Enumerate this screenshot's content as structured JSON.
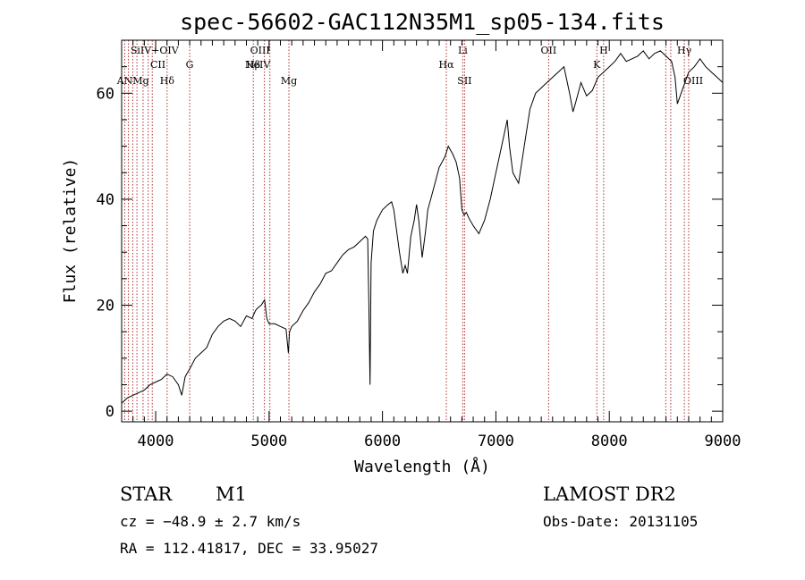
{
  "chart_data": {
    "type": "line",
    "title": "spec-56602-GAC112N35M1_sp05-134.fits",
    "xlabel": "Wavelength (Å)",
    "ylabel": "Flux (relative)",
    "xlim": [
      3700,
      9000
    ],
    "ylim": [
      -2,
      70
    ],
    "x_ticks": [
      4000,
      5000,
      6000,
      7000,
      8000,
      9000
    ],
    "y_ticks": [
      0,
      20,
      40,
      60
    ],
    "grid": false,
    "legend": "none",
    "line_color": "#000000",
    "marker_color": "#b03030",
    "series": [
      {
        "x": [
          3700,
          3750,
          3800,
          3850,
          3900,
          3950,
          4000,
          4050,
          4100,
          4150,
          4200,
          4230,
          4260,
          4300,
          4350,
          4400,
          4450,
          4500,
          4550,
          4600,
          4650,
          4700,
          4750,
          4800,
          4850,
          4880,
          4900,
          4930,
          4960,
          4980,
          5000,
          5050,
          5100,
          5150,
          5170,
          5180,
          5200,
          5250,
          5300,
          5350,
          5400,
          5450,
          5500,
          5550,
          5600,
          5650,
          5700,
          5750,
          5800,
          5850,
          5870,
          5880,
          5890,
          5900,
          5920,
          5950,
          6000,
          6050,
          6080,
          6100,
          6150,
          6180,
          6200,
          6220,
          6250,
          6280,
          6300,
          6320,
          6350,
          6380,
          6400,
          6450,
          6500,
          6550,
          6580,
          6620,
          6650,
          6680,
          6700,
          6720,
          6740,
          6760,
          6800,
          6850,
          6900,
          6950,
          7000,
          7050,
          7080,
          7100,
          7120,
          7150,
          7200,
          7250,
          7300,
          7350,
          7400,
          7450,
          7500,
          7550,
          7600,
          7620,
          7650,
          7680,
          7700,
          7750,
          7800,
          7850,
          7900,
          7950,
          8000,
          8050,
          8100,
          8150,
          8200,
          8250,
          8300,
          8350,
          8400,
          8450,
          8500,
          8550,
          8580,
          8600,
          8650,
          8700,
          8750,
          8800,
          8850,
          8900,
          8950,
          9000
        ],
        "y": [
          1.5,
          2.5,
          3.0,
          3.5,
          4.0,
          5.0,
          5.5,
          6.0,
          7.0,
          6.5,
          5.0,
          3.0,
          6.5,
          8.0,
          10.0,
          11.0,
          12.0,
          14.5,
          16.0,
          17.0,
          17.5,
          17.0,
          16.0,
          18.0,
          17.5,
          19.0,
          19.5,
          20.0,
          21.0,
          17.5,
          16.5,
          16.5,
          16.0,
          15.5,
          11.0,
          15.0,
          16.0,
          17.0,
          19.0,
          20.5,
          22.5,
          24.0,
          26.0,
          26.5,
          28.0,
          29.5,
          30.5,
          31.0,
          32.0,
          33.0,
          32.5,
          20.0,
          5.0,
          28.0,
          34.0,
          36.0,
          38.0,
          39.0,
          39.5,
          38.0,
          30.0,
          26.0,
          27.5,
          26.0,
          33.0,
          36.0,
          39.0,
          36.0,
          29.0,
          34.0,
          38.0,
          42.0,
          46.0,
          48.0,
          50.0,
          48.5,
          47.0,
          44.0,
          38.0,
          37.0,
          37.5,
          36.5,
          35.0,
          33.5,
          36.0,
          40.0,
          45.0,
          50.0,
          53.0,
          55.0,
          50.0,
          45.0,
          43.0,
          50.0,
          57.0,
          60.0,
          61.0,
          62.0,
          63.0,
          64.0,
          65.0,
          63.0,
          60.0,
          56.5,
          58.0,
          62.0,
          59.5,
          60.5,
          63.0,
          64.0,
          65.0,
          66.0,
          67.5,
          66.0,
          66.5,
          67.0,
          68.0,
          66.5,
          67.5,
          68.0,
          67.0,
          66.0,
          63.0,
          58.0,
          61.0,
          64.0,
          65.0,
          66.5,
          65.0,
          64.0,
          63.0,
          62.0
        ]
      }
    ],
    "line_markers": [
      {
        "x": 3727,
        "label": "",
        "row": 0
      },
      {
        "x": 3760,
        "label": "",
        "row": 0
      },
      {
        "x": 3798,
        "label": "",
        "row": 0
      },
      {
        "x": 3835,
        "label": "",
        "row": 0
      },
      {
        "x": 3889,
        "label": "",
        "row": 0
      },
      {
        "x": 3934,
        "label": "",
        "row": 0
      },
      {
        "x": 3970,
        "label": "",
        "row": 0
      },
      {
        "x": 4101,
        "label": "Hδ",
        "row": 3
      },
      {
        "x": 4300,
        "label": "G",
        "row": 2
      },
      {
        "x": 4861,
        "label": "Hβ",
        "row": 2
      },
      {
        "x": 4959,
        "label": "",
        "row": 0
      },
      {
        "x": 5007,
        "label": "",
        "row": 0
      },
      {
        "x": 5175,
        "label": "Mg",
        "row": 3
      },
      {
        "x": 6563,
        "label": "Hα",
        "row": 2
      },
      {
        "x": 6708,
        "label": "Li",
        "row": 1
      },
      {
        "x": 6724,
        "label": "SII",
        "row": 3
      },
      {
        "x": 7465,
        "label": "OII",
        "row": 1
      },
      {
        "x": 7890,
        "label": "K",
        "row": 2
      },
      {
        "x": 7950,
        "label": "H",
        "row": 1
      },
      {
        "x": 8498,
        "label": "",
        "row": 0
      },
      {
        "x": 8542,
        "label": "",
        "row": 0
      },
      {
        "x": 8662,
        "label": "Hγ",
        "row": 1
      },
      {
        "x": 8700,
        "label": "",
        "row": 0
      }
    ],
    "extra_labels": [
      {
        "x": 3800,
        "text": "ANMg",
        "row": 3
      },
      {
        "x": 3990,
        "text": "SiIV+OIV",
        "row": 1
      },
      {
        "x": 4020,
        "text": "CII",
        "row": 2
      },
      {
        "x": 4920,
        "text": "OIII",
        "row": 1
      },
      {
        "x": 4900,
        "text": "NeIV",
        "row": 2
      },
      {
        "x": 8740,
        "text": "OIII",
        "row": 3
      }
    ]
  },
  "info": {
    "object_class": "STAR",
    "subclass": "M1",
    "survey": "LAMOST DR2",
    "redshift": "cz = −48.9 ± 2.7 km/s",
    "obs_date": "Obs-Date: 20131105",
    "coords": "RA = 112.41817, DEC =  33.95027"
  }
}
